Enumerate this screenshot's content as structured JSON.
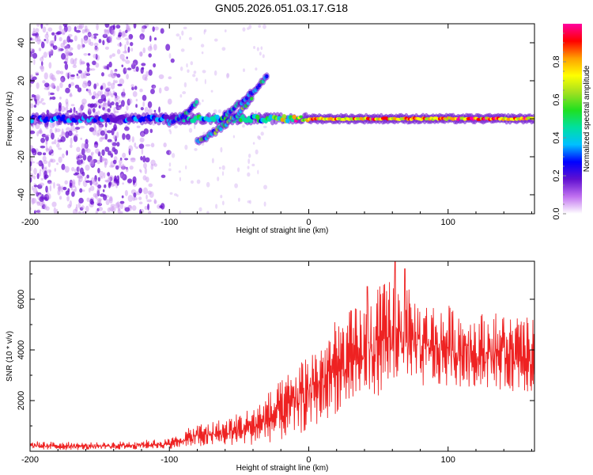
{
  "figure_title": "GN05.2026.051.03.17.G18",
  "chart_data": [
    {
      "type": "heatmap",
      "title": "GN05.2026.051.03.17.G18",
      "xlabel": "Height of straight line (km)",
      "ylabel": "Frequency (Hz)",
      "xlim": [
        -200,
        162
      ],
      "ylim": [
        -50,
        50
      ],
      "x_ticks": [
        -200,
        -100,
        0,
        100
      ],
      "y_ticks": [
        -40,
        -20,
        0,
        20,
        40
      ],
      "colorbar": {
        "label": "Normalized spectral amplitude",
        "range": [
          0,
          1
        ],
        "ticks": [
          "0.0",
          "0.2",
          "0.4",
          "0.6",
          "0.8"
        ],
        "colors": [
          "#ffffff",
          "#c070f0",
          "#6010d0",
          "#0000ff",
          "#00c0ff",
          "#00e0a0",
          "#20e020",
          "#a0e020",
          "#ffff00",
          "#ffa000",
          "#ff0000",
          "#ff00a0"
        ]
      },
      "features": [
        {
          "name": "scatter noise",
          "x_range": [
            -200,
            -95
          ],
          "freq_range": [
            -50,
            50
          ],
          "amplitude": 0.1
        },
        {
          "name": "main carrier line",
          "x": [
            -200,
            -100,
            -80,
            -40,
            -20,
            0,
            50,
            100,
            162
          ],
          "freq": [
            0,
            0,
            0,
            0,
            0,
            0,
            0,
            0,
            0
          ],
          "amplitude": [
            0.25,
            0.3,
            0.4,
            0.45,
            0.6,
            0.9,
            0.95,
            0.95,
            0.95
          ]
        },
        {
          "name": "rising branch A",
          "x": [
            -100,
            -90,
            -80
          ],
          "freq": [
            -2,
            2,
            9
          ],
          "amplitude": 0.35
        },
        {
          "name": "rising branch B",
          "x": [
            -80,
            -70,
            -60,
            -50,
            -40
          ],
          "freq": [
            -12,
            -8,
            -3,
            3,
            12
          ],
          "amplitude": 0.45
        },
        {
          "name": "rising branch C",
          "x": [
            -60,
            -50,
            -40,
            -30
          ],
          "freq": [
            2,
            8,
            14,
            22
          ],
          "amplitude": 0.35
        }
      ]
    },
    {
      "type": "line",
      "xlabel": "Height of straight line (km)",
      "ylabel": "SNR (10 * v/v)",
      "xlim": [
        -200,
        162
      ],
      "ylim": [
        0,
        7500
      ],
      "x_ticks": [
        -200,
        -100,
        0,
        100
      ],
      "y_ticks": [
        2000,
        4000,
        6000
      ],
      "color": "#ee2222",
      "envelope": [
        {
          "x": -200,
          "low": 50,
          "high": 400
        },
        {
          "x": -150,
          "low": 50,
          "high": 350
        },
        {
          "x": -100,
          "low": 100,
          "high": 500
        },
        {
          "x": -80,
          "low": 150,
          "high": 1100
        },
        {
          "x": -60,
          "low": 200,
          "high": 1300
        },
        {
          "x": -40,
          "low": 250,
          "high": 1800
        },
        {
          "x": -20,
          "low": 400,
          "high": 2800
        },
        {
          "x": 0,
          "low": 800,
          "high": 4000
        },
        {
          "x": 20,
          "low": 1500,
          "high": 5200
        },
        {
          "x": 40,
          "low": 2000,
          "high": 6000
        },
        {
          "x": 60,
          "low": 2400,
          "high": 7000
        },
        {
          "x": 80,
          "low": 2500,
          "high": 6000
        },
        {
          "x": 100,
          "low": 2500,
          "high": 5800
        },
        {
          "x": 120,
          "low": 2500,
          "high": 5500
        },
        {
          "x": 140,
          "low": 2400,
          "high": 5500
        },
        {
          "x": 162,
          "low": 2300,
          "high": 5200
        }
      ],
      "peaks": [
        {
          "x": 42,
          "y": 6500
        },
        {
          "x": 62,
          "y": 7600
        },
        {
          "x": 69,
          "y": 7200
        }
      ]
    }
  ]
}
